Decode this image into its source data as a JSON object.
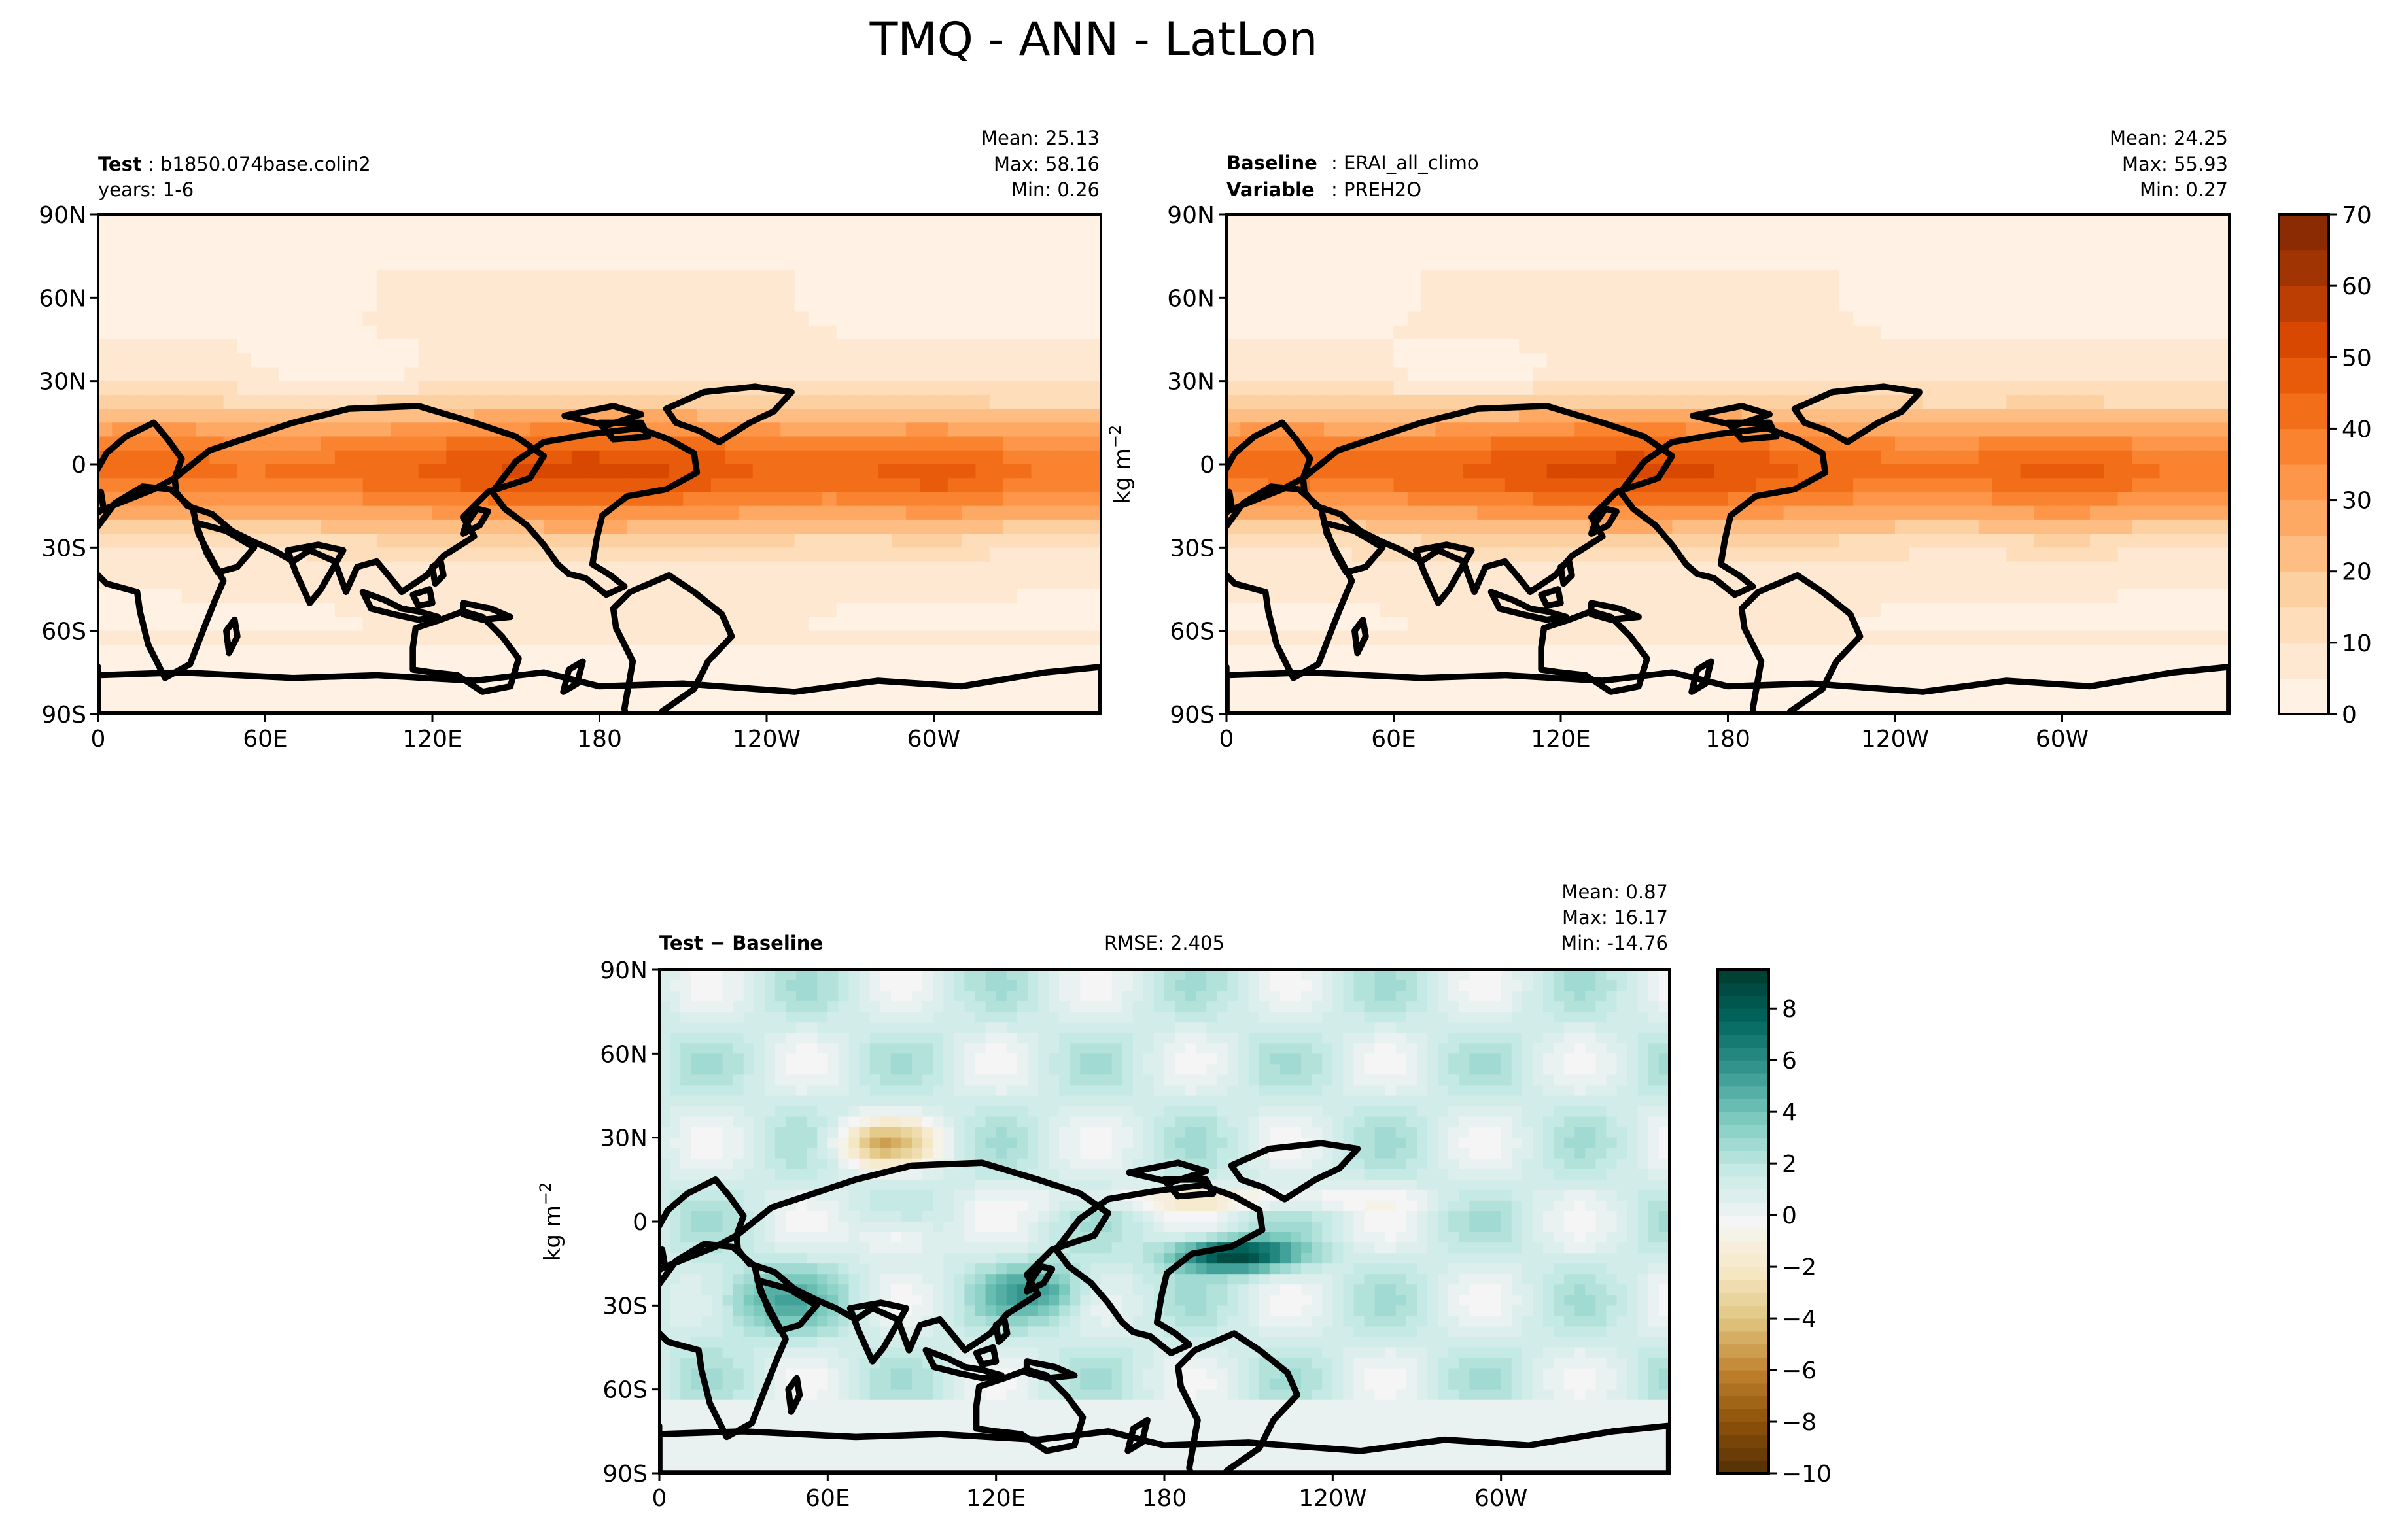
{
  "chart_data": [
    {
      "type": "heatmap",
      "panel": "test",
      "title_bold": "Test",
      "title_rest": "b1850.074base.colin2",
      "subtitle": "years: 1-6",
      "stats": {
        "mean": "Mean: 25.13",
        "max": "Max: 58.16",
        "min": "Min:  0.26"
      },
      "lat_ticks": [
        "90N",
        "60N",
        "30N",
        "0",
        "30S",
        "60S",
        "90S"
      ],
      "lon_ticks": [
        "0",
        "60E",
        "120E",
        "180",
        "120W",
        "60W"
      ],
      "lat_values": [
        90,
        60,
        30,
        0,
        -30,
        -60,
        -90
      ],
      "lon_values": [
        0,
        60,
        120,
        180,
        240,
        300
      ],
      "xlim": [
        0,
        360
      ],
      "ylim": [
        -90,
        90
      ],
      "peak_lon": 175,
      "field_range": [
        0.26,
        58.16
      ]
    },
    {
      "type": "heatmap",
      "panel": "baseline",
      "title_bold": "Baseline",
      "title_rest": "ERAI_all_climo",
      "title2_bold": "Variable",
      "title2_rest": "PREH2O",
      "stats": {
        "mean": "Mean: 24.25",
        "max": "Max: 55.93",
        "min": "Min:  0.27"
      },
      "lat_ticks": [
        "90N",
        "60N",
        "30N",
        "0",
        "30S",
        "60S",
        "90S"
      ],
      "lon_ticks": [
        "0",
        "60E",
        "120E",
        "180",
        "120W",
        "60W"
      ],
      "lat_values": [
        90,
        60,
        30,
        0,
        -30,
        -60,
        -90
      ],
      "lon_values": [
        0,
        60,
        120,
        180,
        240,
        300
      ],
      "xlim": [
        0,
        360
      ],
      "ylim": [
        -90,
        90
      ],
      "peak_lon": 145,
      "field_range": [
        0.27,
        55.93
      ],
      "ylabel": "kg m",
      "ylabel_sup": "−2"
    },
    {
      "type": "heatmap",
      "panel": "difference",
      "title_bold": "Test − Baseline",
      "rmse": "RMSE: 2.405",
      "stats": {
        "mean": "Mean:  0.87",
        "max": "Max: 16.17",
        "min": "Min: -14.76"
      },
      "lat_ticks": [
        "90N",
        "60N",
        "30N",
        "0",
        "30S",
        "60S",
        "90S"
      ],
      "lon_ticks": [
        "0",
        "60E",
        "120E",
        "180",
        "120W",
        "60W"
      ],
      "lat_values": [
        90,
        60,
        30,
        0,
        -30,
        -60,
        -90
      ],
      "lon_values": [
        0,
        60,
        120,
        180,
        240,
        300
      ],
      "xlim": [
        0,
        360
      ],
      "ylim": [
        -90,
        90
      ],
      "field_range": [
        -14.76,
        16.17
      ],
      "ylabel": "kg m",
      "ylabel_sup": "−2"
    },
    {
      "type": "colorbar",
      "name": "absolute",
      "ticks": [
        "0",
        "10",
        "20",
        "30",
        "40",
        "50",
        "60",
        "70"
      ],
      "tick_values": [
        0,
        10,
        20,
        30,
        40,
        50,
        60,
        70
      ],
      "range": [
        0,
        70
      ],
      "levels": 14,
      "colors": [
        "#fff5eb",
        "#fee6ce",
        "#fdd0a2",
        "#fdae6b",
        "#fd8d3c",
        "#f16913",
        "#d94801",
        "#a63603",
        "#7f2704"
      ]
    },
    {
      "type": "colorbar",
      "name": "difference",
      "ticks": [
        "8",
        "6",
        "4",
        "2",
        "0",
        "−2",
        "−4",
        "−6",
        "−8",
        "−10"
      ],
      "tick_values": [
        8,
        6,
        4,
        2,
        0,
        -2,
        -4,
        -6,
        -8,
        -10
      ],
      "range": [
        -10,
        9.5
      ],
      "levels": 39,
      "colors": [
        "#543005",
        "#8c510a",
        "#bf812d",
        "#dfc27d",
        "#f6e8c3",
        "#f5f5f5",
        "#c7eae5",
        "#80cdc1",
        "#35978f",
        "#01665e",
        "#003c30"
      ]
    }
  ],
  "suptitle": "TMQ - ANN - LatLon"
}
